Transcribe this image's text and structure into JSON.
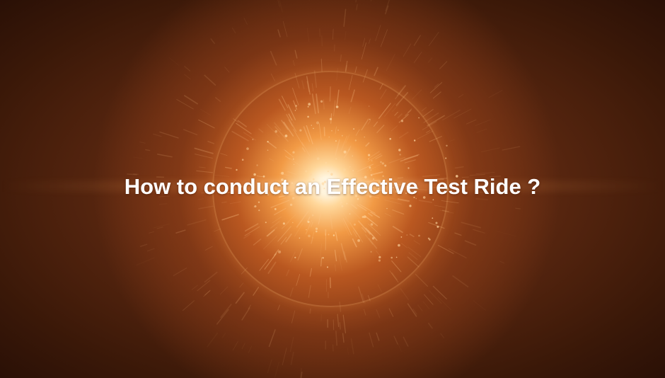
{
  "title": "How to conduct an Effective Test Ride ?",
  "colors": {
    "background": "#5a2710",
    "burst_core": "#ffffff",
    "burst_glow": "#f29a45",
    "text": "#ffffff"
  }
}
